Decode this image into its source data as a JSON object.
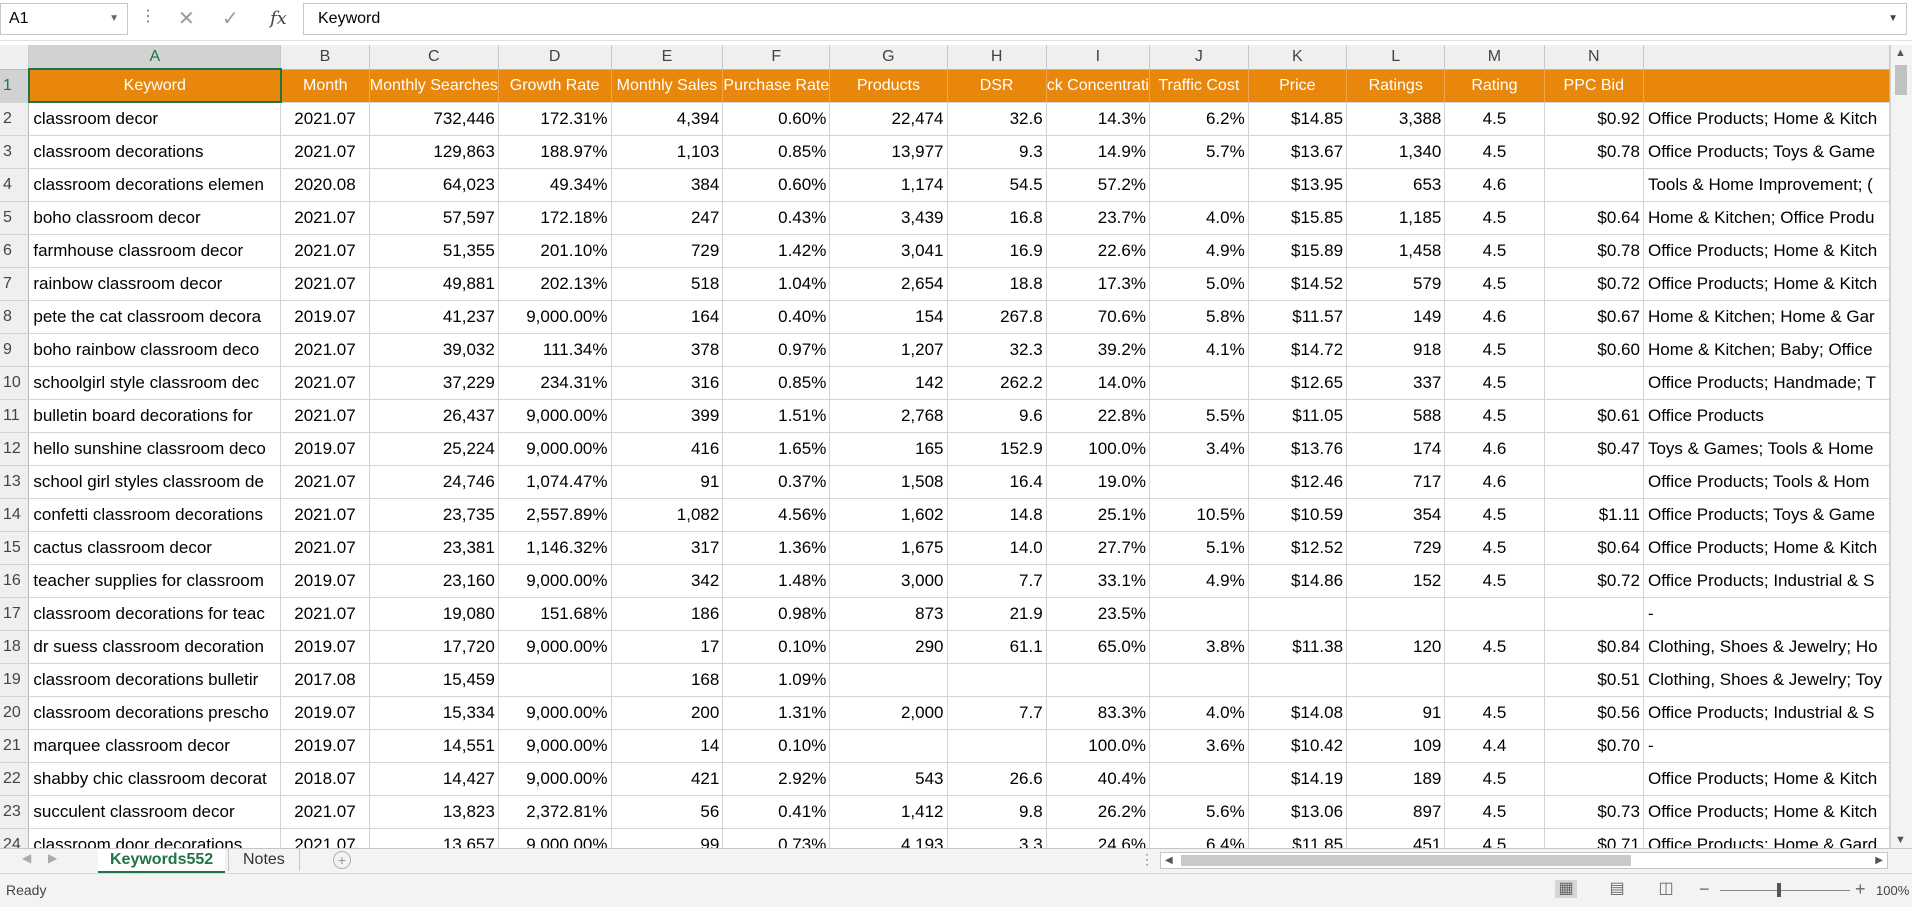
{
  "formula_bar": {
    "name_box": "A1",
    "cancel_icon": "✕",
    "enter_icon": "✓",
    "fx_label": "fx",
    "content": "Keyword"
  },
  "columns": [
    "A",
    "B",
    "C",
    "D",
    "E",
    "F",
    "G",
    "H",
    "I",
    "J",
    "K",
    "L",
    "M",
    "N"
  ],
  "selected_column": "A",
  "header_row": [
    "Keyword",
    "Month",
    "Monthly Searches",
    "Growth Rate",
    "Monthly Sales",
    "Purchase Rate",
    "Products",
    "DSR",
    "ck Concentrati",
    "Traffic Cost",
    "Price",
    "Ratings",
    "Rating",
    "PPC Bid",
    ""
  ],
  "rows": [
    [
      "2",
      "classroom decor",
      "2021.07",
      "732,446",
      "172.31%",
      "4,394",
      "0.60%",
      "22,474",
      "32.6",
      "14.3%",
      "6.2%",
      "$14.85",
      "3,388",
      "4.5",
      "$0.92",
      "Office Products; Home & Kitch"
    ],
    [
      "3",
      "classroom decorations",
      "2021.07",
      "129,863",
      "188.97%",
      "1,103",
      "0.85%",
      "13,977",
      "9.3",
      "14.9%",
      "5.7%",
      "$13.67",
      "1,340",
      "4.5",
      "$0.78",
      "Office Products; Toys & Game"
    ],
    [
      "4",
      "classroom decorations elemen",
      "2020.08",
      "64,023",
      "49.34%",
      "384",
      "0.60%",
      "1,174",
      "54.5",
      "57.2%",
      "",
      "$13.95",
      "653",
      "4.6",
      "",
      "Tools & Home Improvement; ("
    ],
    [
      "5",
      "boho classroom decor",
      "2021.07",
      "57,597",
      "172.18%",
      "247",
      "0.43%",
      "3,439",
      "16.8",
      "23.7%",
      "4.0%",
      "$15.85",
      "1,185",
      "4.5",
      "$0.64",
      "Home & Kitchen; Office Produ"
    ],
    [
      "6",
      "farmhouse classroom decor",
      "2021.07",
      "51,355",
      "201.10%",
      "729",
      "1.42%",
      "3,041",
      "16.9",
      "22.6%",
      "4.9%",
      "$15.89",
      "1,458",
      "4.5",
      "$0.78",
      "Office Products; Home & Kitch"
    ],
    [
      "7",
      "rainbow classroom decor",
      "2021.07",
      "49,881",
      "202.13%",
      "518",
      "1.04%",
      "2,654",
      "18.8",
      "17.3%",
      "5.0%",
      "$14.52",
      "579",
      "4.5",
      "$0.72",
      "Office Products; Home & Kitch"
    ],
    [
      "8",
      "pete the cat classroom decora",
      "2019.07",
      "41,237",
      "9,000.00%",
      "164",
      "0.40%",
      "154",
      "267.8",
      "70.6%",
      "5.8%",
      "$11.57",
      "149",
      "4.6",
      "$0.67",
      "Home & Kitchen; Home & Gar"
    ],
    [
      "9",
      "boho rainbow classroom deco",
      "2021.07",
      "39,032",
      "111.34%",
      "378",
      "0.97%",
      "1,207",
      "32.3",
      "39.2%",
      "4.1%",
      "$14.72",
      "918",
      "4.5",
      "$0.60",
      "Home & Kitchen; Baby; Office"
    ],
    [
      "10",
      "schoolgirl style classroom dec",
      "2021.07",
      "37,229",
      "234.31%",
      "316",
      "0.85%",
      "142",
      "262.2",
      "14.0%",
      "",
      "$12.65",
      "337",
      "4.5",
      "",
      "Office Products; Handmade; T"
    ],
    [
      "11",
      "bulletin board decorations for",
      "2021.07",
      "26,437",
      "9,000.00%",
      "399",
      "1.51%",
      "2,768",
      "9.6",
      "22.8%",
      "5.5%",
      "$11.05",
      "588",
      "4.5",
      "$0.61",
      "Office Products"
    ],
    [
      "12",
      "hello sunshine classroom deco",
      "2019.07",
      "25,224",
      "9,000.00%",
      "416",
      "1.65%",
      "165",
      "152.9",
      "100.0%",
      "3.4%",
      "$13.76",
      "174",
      "4.6",
      "$0.47",
      "Toys & Games; Tools & Home"
    ],
    [
      "13",
      "school girl styles classroom de",
      "2021.07",
      "24,746",
      "1,074.47%",
      "91",
      "0.37%",
      "1,508",
      "16.4",
      "19.0%",
      "",
      "$12.46",
      "717",
      "4.6",
      "",
      "Office Products; Tools & Hom"
    ],
    [
      "14",
      "confetti classroom decorations",
      "2021.07",
      "23,735",
      "2,557.89%",
      "1,082",
      "4.56%",
      "1,602",
      "14.8",
      "25.1%",
      "10.5%",
      "$10.59",
      "354",
      "4.5",
      "$1.11",
      "Office Products; Toys & Game"
    ],
    [
      "15",
      "cactus classroom decor",
      "2021.07",
      "23,381",
      "1,146.32%",
      "317",
      "1.36%",
      "1,675",
      "14.0",
      "27.7%",
      "5.1%",
      "$12.52",
      "729",
      "4.5",
      "$0.64",
      "Office Products; Home & Kitch"
    ],
    [
      "16",
      "teacher supplies for classroom",
      "2019.07",
      "23,160",
      "9,000.00%",
      "342",
      "1.48%",
      "3,000",
      "7.7",
      "33.1%",
      "4.9%",
      "$14.86",
      "152",
      "4.5",
      "$0.72",
      "Office Products; Industrial & S"
    ],
    [
      "17",
      "classroom decorations for teac",
      "2021.07",
      "19,080",
      "151.68%",
      "186",
      "0.98%",
      "873",
      "21.9",
      "23.5%",
      "",
      "",
      "",
      "",
      "",
      "-"
    ],
    [
      "18",
      "dr suess classroom decoration",
      "2019.07",
      "17,720",
      "9,000.00%",
      "17",
      "0.10%",
      "290",
      "61.1",
      "65.0%",
      "3.8%",
      "$11.38",
      "120",
      "4.5",
      "$0.84",
      "Clothing, Shoes & Jewelry; Ho"
    ],
    [
      "19",
      "classroom decorations bulletir",
      "2017.08",
      "15,459",
      "",
      "168",
      "1.09%",
      "",
      "",
      "",
      "",
      "",
      "",
      "",
      "$0.51",
      "Clothing, Shoes & Jewelry; Toy"
    ],
    [
      "20",
      "classroom decorations prescho",
      "2019.07",
      "15,334",
      "9,000.00%",
      "200",
      "1.31%",
      "2,000",
      "7.7",
      "83.3%",
      "4.0%",
      "$14.08",
      "91",
      "4.5",
      "$0.56",
      "Office Products; Industrial & S"
    ],
    [
      "21",
      "marquee classroom decor",
      "2019.07",
      "14,551",
      "9,000.00%",
      "14",
      "0.10%",
      "",
      "",
      "100.0%",
      "3.6%",
      "$10.42",
      "109",
      "4.4",
      "$0.70",
      "-"
    ],
    [
      "22",
      "shabby chic classroom decorat",
      "2018.07",
      "14,427",
      "9,000.00%",
      "421",
      "2.92%",
      "543",
      "26.6",
      "40.4%",
      "",
      "$14.19",
      "189",
      "4.5",
      "",
      "Office Products; Home & Kitch"
    ],
    [
      "23",
      "succulent classroom decor",
      "2021.07",
      "13,823",
      "2,372.81%",
      "56",
      "0.41%",
      "1,412",
      "9.8",
      "26.2%",
      "5.6%",
      "$13.06",
      "897",
      "4.5",
      "$0.73",
      "Office Products; Home & Kitch"
    ],
    [
      "24",
      "classroom door decorations",
      "2021.07",
      "13,657",
      "9,000.00%",
      "99",
      "0.73%",
      "4,193",
      "3.3",
      "24.6%",
      "6.4%",
      "$11.85",
      "451",
      "4.5",
      "$0.71",
      "Office Products; Home & Gard"
    ]
  ],
  "sheet_tabs": {
    "active": "Keywords552",
    "other": "Notes",
    "add_icon": "+"
  },
  "status_bar": {
    "status": "Ready",
    "zoom": "100%"
  },
  "colors": {
    "header_fill": "#E8870B",
    "header_text": "#FFFFFF",
    "accent": "#217346"
  }
}
